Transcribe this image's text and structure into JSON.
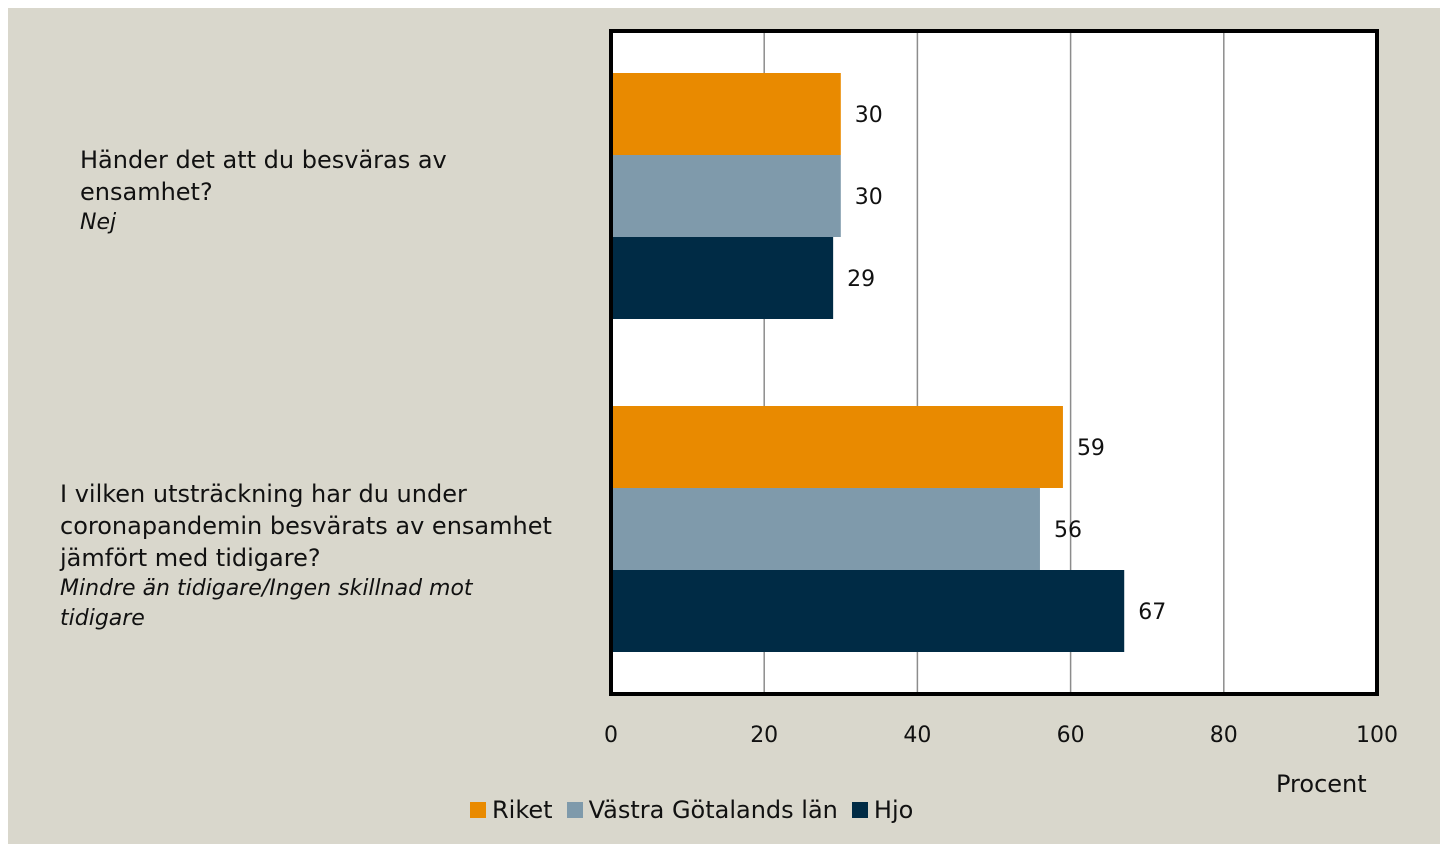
{
  "chart_data": {
    "type": "bar",
    "orientation": "horizontal",
    "categories": [
      {
        "question": "Händer det att du besväras av ensamhet?",
        "answer": "Nej"
      },
      {
        "question": "I vilken utsträckning har du under coronapandemin besvärats av ensamhet jämfört med tidigare?",
        "answer": "Mindre än tidigare/Ingen skillnad mot tidigare"
      }
    ],
    "series": [
      {
        "name": "Riket",
        "color": "#e98a00",
        "values": [
          30,
          59
        ]
      },
      {
        "name": "Västra Götalands län",
        "color": "#7f9aab",
        "values": [
          30,
          56
        ]
      },
      {
        "name": "Hjo",
        "color": "#002b45",
        "values": [
          29,
          67
        ]
      }
    ],
    "xlim": [
      0,
      100
    ],
    "xticks": [
      "0",
      "20",
      "40",
      "60",
      "80",
      "100"
    ],
    "xlabel": "Procent",
    "grid": true,
    "legend_position": "bottom"
  }
}
